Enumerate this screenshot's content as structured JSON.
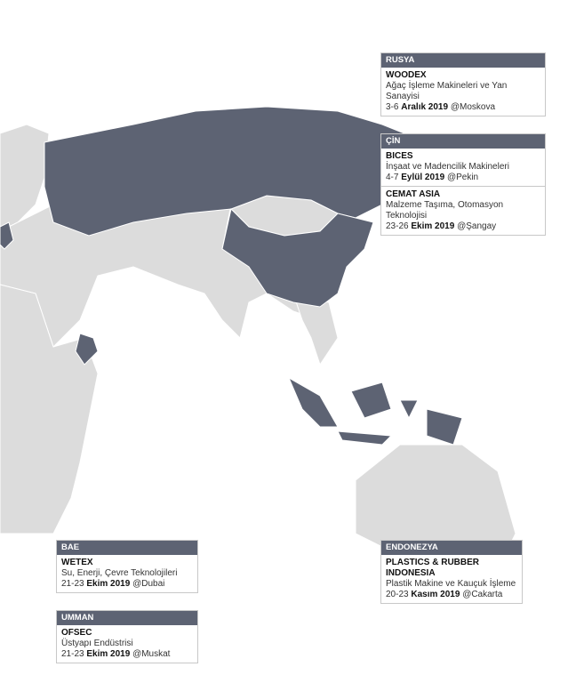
{
  "colors": {
    "highlight": "#5d6373",
    "land": "#dcdcdc",
    "background": "#ffffff"
  },
  "boxes": {
    "rusya": {
      "country": "RUSYA",
      "events": [
        {
          "name": "WOODEX",
          "desc": "Ağaç İşleme Makineleri ve Yan Sanayisi",
          "days": "3-6",
          "month": "Aralık 2019",
          "city": "@Moskova"
        }
      ]
    },
    "cin": {
      "country": "ÇİN",
      "events": [
        {
          "name": "BICES",
          "desc": "İnşaat ve Madencilik Makineleri",
          "days": "4-7",
          "month": "Eylül 2019",
          "city": "@Pekin"
        },
        {
          "name": "CEMAT ASIA",
          "desc": "Malzeme Taşıma, Otomasyon Teknolojisi",
          "days": "23-26",
          "month": "Ekim 2019",
          "city": "@Şangay"
        }
      ]
    },
    "bae": {
      "country": "BAE",
      "events": [
        {
          "name": "WETEX",
          "desc": "Su, Enerji, Çevre Teknolojileri",
          "days": "21-23",
          "month": "Ekim 2019",
          "city": "@Dubai"
        }
      ]
    },
    "umman": {
      "country": "UMMAN",
      "events": [
        {
          "name": "OFSEC",
          "desc": "Üstyapı Endüstrisi",
          "days": "21-23",
          "month": "Ekim 2019",
          "city": "@Muskat"
        }
      ]
    },
    "endonezya": {
      "country": "ENDONEZYA",
      "events": [
        {
          "name": "PLASTICS & RUBBER INDONESIA",
          "desc": "Plastik Makine ve Kauçuk İşleme",
          "days": "20-23",
          "month": "Kasım 2019",
          "city": "@Cakarta"
        }
      ]
    }
  }
}
